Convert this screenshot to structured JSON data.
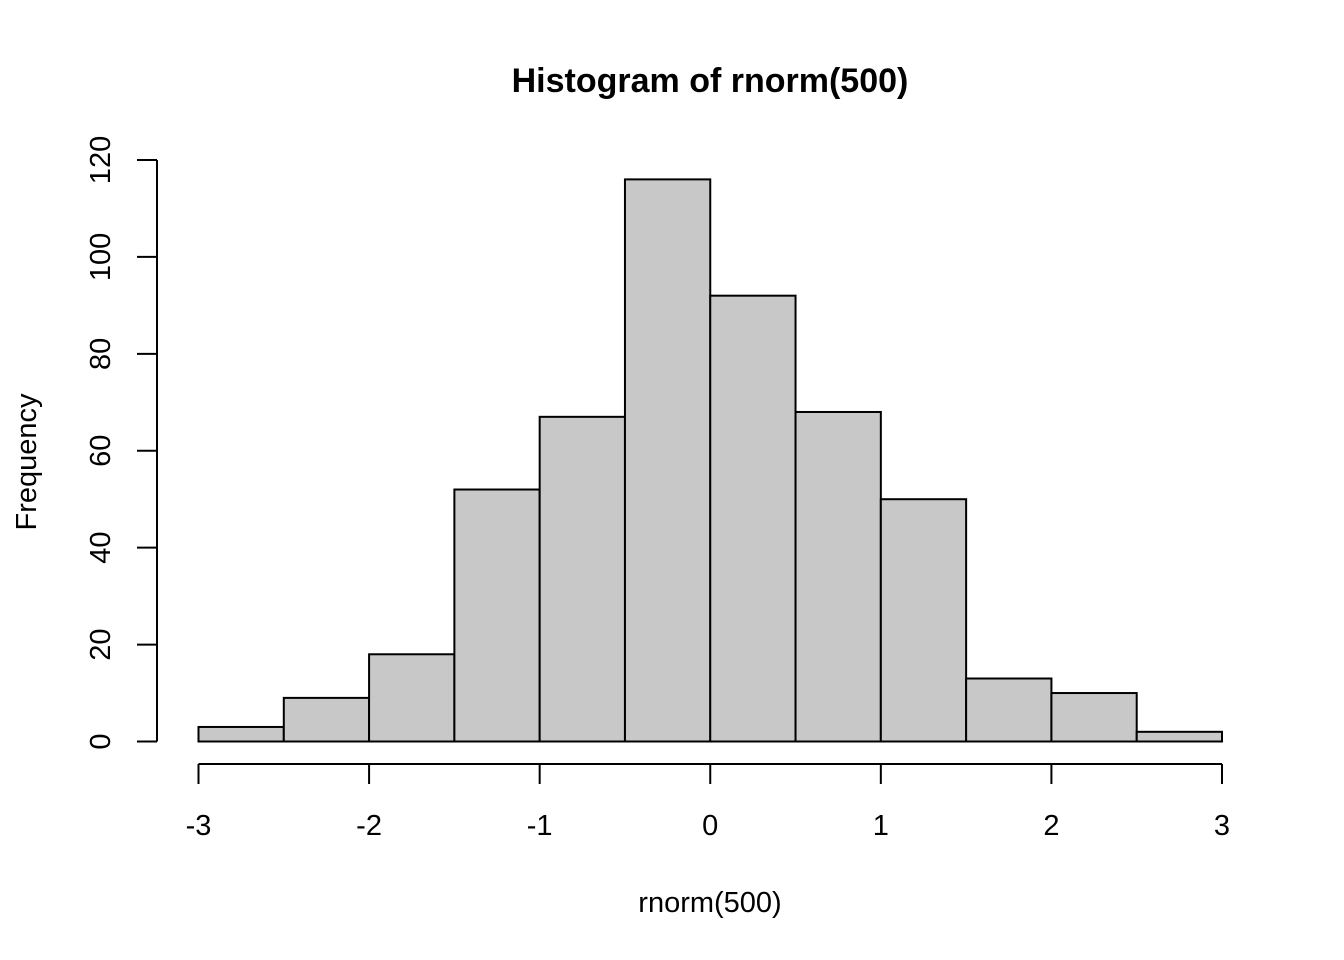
{
  "chart_data": {
    "type": "bar",
    "subtype": "histogram",
    "title": "Histogram of rnorm(500)",
    "xlabel": "rnorm(500)",
    "ylabel": "Frequency",
    "bins": [
      {
        "x0": -3.0,
        "x1": -2.5,
        "count": 3
      },
      {
        "x0": -2.5,
        "x1": -2.0,
        "count": 9
      },
      {
        "x0": -2.0,
        "x1": -1.5,
        "count": 18
      },
      {
        "x0": -1.5,
        "x1": -1.0,
        "count": 52
      },
      {
        "x0": -1.0,
        "x1": -0.5,
        "count": 67
      },
      {
        "x0": -0.5,
        "x1": 0.0,
        "count": 116
      },
      {
        "x0": 0.0,
        "x1": 0.5,
        "count": 92
      },
      {
        "x0": 0.5,
        "x1": 1.0,
        "count": 68
      },
      {
        "x0": 1.0,
        "x1": 1.5,
        "count": 50
      },
      {
        "x0": 1.5,
        "x1": 2.0,
        "count": 13
      },
      {
        "x0": 2.0,
        "x1": 2.5,
        "count": 10
      },
      {
        "x0": 2.5,
        "x1": 3.0,
        "count": 2
      }
    ],
    "xlim": [
      -3,
      3
    ],
    "ylim": [
      0,
      120
    ],
    "x_ticks": [
      -3,
      -2,
      -1,
      0,
      1,
      2,
      3
    ],
    "x_tick_labels": [
      "-3",
      "-2",
      "-1",
      "0",
      "1",
      "2",
      "3"
    ],
    "y_ticks": [
      0,
      20,
      40,
      60,
      80,
      100,
      120
    ],
    "y_tick_labels": [
      "0",
      "20",
      "40",
      "60",
      "80",
      "100",
      "120"
    ],
    "grid": false,
    "legend": "none",
    "colors": {
      "bar_fill": "#c8c8c8",
      "bar_stroke": "#000000",
      "axis": "#000000"
    }
  }
}
